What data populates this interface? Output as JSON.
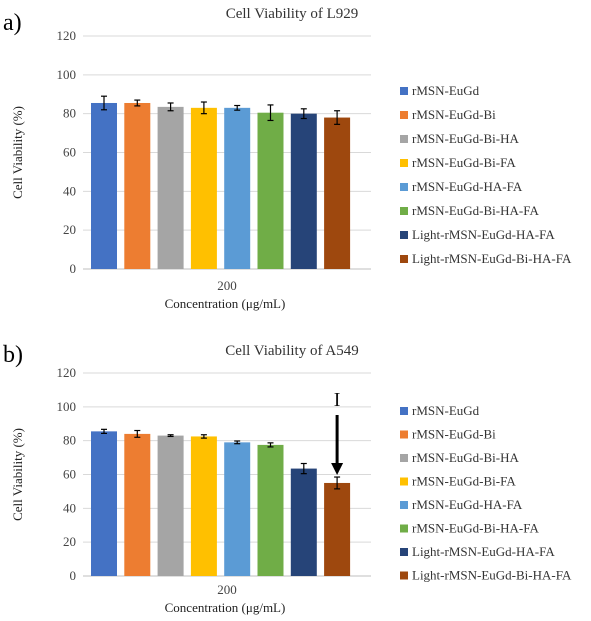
{
  "chart_data": [
    {
      "panel": "a)",
      "type": "bar",
      "title": "Cell Viability of L929",
      "ylabel": "Cell Viability (%)",
      "xlabel": "Concentration (μg/mL)",
      "categories": [
        "200"
      ],
      "ylim": [
        0,
        120
      ],
      "yticks": [
        0,
        20,
        40,
        60,
        80,
        100,
        120
      ],
      "grid": true,
      "legend_position": "right",
      "series": [
        {
          "name": "rMSN-EuGd",
          "color": "#4472C4",
          "values": [
            85.5
          ],
          "error": [
            3.5
          ]
        },
        {
          "name": "rMSN-EuGd-Bi",
          "color": "#ED7D31",
          "values": [
            85.5
          ],
          "error": [
            1.5
          ]
        },
        {
          "name": "rMSN-EuGd-Bi-HA",
          "color": "#A5A5A5",
          "values": [
            83.5
          ],
          "error": [
            2.0
          ]
        },
        {
          "name": "rMSN-EuGd-Bi-FA",
          "color": "#FFC000",
          "values": [
            83.0
          ],
          "error": [
            3.0
          ]
        },
        {
          "name": "rMSN-EuGd-HA-FA",
          "color": "#5B9BD5",
          "values": [
            83.0
          ],
          "error": [
            1.2
          ]
        },
        {
          "name": "rMSN-EuGd-Bi-HA-FA",
          "color": "#70AD47",
          "values": [
            80.5
          ],
          "error": [
            4.0
          ]
        },
        {
          "name": "Light-rMSN-EuGd-HA-FA",
          "color": "#264478",
          "values": [
            80.0
          ],
          "error": [
            2.5
          ]
        },
        {
          "name": "Light-rMSN-EuGd-Bi-HA-FA",
          "color": "#9E480E",
          "values": [
            78.0
          ],
          "error": [
            3.5
          ]
        }
      ]
    },
    {
      "panel": "b)",
      "type": "bar",
      "title": "Cell Viability of A549",
      "ylabel": "Cell Viability (%)",
      "xlabel": "Concentration (μg/mL)",
      "categories": [
        "200"
      ],
      "ylim": [
        0,
        120
      ],
      "yticks": [
        0,
        20,
        40,
        60,
        80,
        100,
        120
      ],
      "grid": true,
      "legend_position": "right",
      "annotation": {
        "text": "I",
        "points_to": "Light-rMSN-EuGd-Bi-HA-FA"
      },
      "series": [
        {
          "name": "rMSN-EuGd",
          "color": "#4472C4",
          "values": [
            85.5
          ],
          "error": [
            1.2
          ]
        },
        {
          "name": "rMSN-EuGd-Bi",
          "color": "#ED7D31",
          "values": [
            84.0
          ],
          "error": [
            2.0
          ]
        },
        {
          "name": "rMSN-EuGd-Bi-HA",
          "color": "#A5A5A5",
          "values": [
            83.0
          ],
          "error": [
            0.5
          ]
        },
        {
          "name": "rMSN-EuGd-Bi-FA",
          "color": "#FFC000",
          "values": [
            82.5
          ],
          "error": [
            1.0
          ]
        },
        {
          "name": "rMSN-EuGd-HA-FA",
          "color": "#5B9BD5",
          "values": [
            79.0
          ],
          "error": [
            0.8
          ]
        },
        {
          "name": "rMSN-EuGd-Bi-HA-FA",
          "color": "#70AD47",
          "values": [
            77.5
          ],
          "error": [
            1.2
          ]
        },
        {
          "name": "Light-rMSN-EuGd-HA-FA",
          "color": "#264478",
          "values": [
            63.5
          ],
          "error": [
            3.0
          ]
        },
        {
          "name": "Light-rMSN-EuGd-Bi-HA-FA",
          "color": "#9E480E",
          "values": [
            55.0
          ],
          "error": [
            3.5
          ]
        }
      ]
    }
  ]
}
